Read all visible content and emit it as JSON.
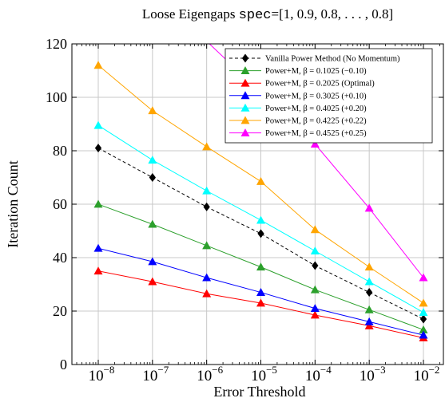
{
  "chart_data": {
    "type": "line",
    "title_prefix": "Loose Eigengaps ",
    "title_code": "spec",
    "title_suffix": "=[1, 0.9, 0.8, . . . , 0.8]",
    "xlabel": "Error Threshold",
    "ylabel": "Iteration Count",
    "x_scale": "log",
    "x": [
      1e-08,
      1e-07,
      1e-06,
      1e-05,
      0.0001,
      0.001,
      0.01
    ],
    "x_tick_labels": [
      {
        "base": "10",
        "exp": "−8"
      },
      {
        "base": "10",
        "exp": "−7"
      },
      {
        "base": "10",
        "exp": "−6"
      },
      {
        "base": "10",
        "exp": "−5"
      },
      {
        "base": "10",
        "exp": "−4"
      },
      {
        "base": "10",
        "exp": "−3"
      },
      {
        "base": "10",
        "exp": "−2"
      }
    ],
    "ylim": [
      0,
      120
    ],
    "y_ticks": [
      0,
      20,
      40,
      60,
      80,
      100,
      120
    ],
    "grid": true,
    "legend_position": "top-right",
    "series": [
      {
        "name": "Vanilla Power Method (No Momentum)",
        "color": "#000000",
        "marker": "diamond",
        "dashed": true,
        "values": [
          81,
          70,
          59,
          49,
          37,
          27,
          17
        ]
      },
      {
        "name": "Power+M, β = 0.1025 (−0.10)",
        "color": "#2ca02c",
        "marker": "triangle",
        "values": [
          60,
          52.5,
          44.5,
          36.5,
          28,
          20.5,
          13
        ]
      },
      {
        "name": "Power+M, β = 0.2025 (Optimal)",
        "color": "#ff0000",
        "marker": "triangle",
        "values": [
          35,
          31,
          26.5,
          23,
          18.5,
          14.5,
          10
        ]
      },
      {
        "name": "Power+M, β = 0.3025 (+0.10)",
        "color": "#0000ff",
        "marker": "triangle",
        "values": [
          43.5,
          38.5,
          32.5,
          27,
          21,
          16,
          11
        ]
      },
      {
        "name": "Power+M, β = 0.4025 (+0.20)",
        "color": "#00ffff",
        "marker": "triangle",
        "values": [
          89.5,
          76.5,
          65,
          54,
          42.5,
          31,
          19.5
        ]
      },
      {
        "name": "Power+M, β = 0.4225 (+0.22)",
        "color": "#ffa500",
        "marker": "triangle",
        "values": [
          112,
          95,
          81.5,
          68.5,
          50.5,
          36.5,
          23
        ]
      },
      {
        "name": "Power+M, β = 0.4525 (+0.25)",
        "color": "#ff00ff",
        "marker": "triangle",
        "values": [
          null,
          null,
          null,
          null,
          82.5,
          58.5,
          32.5
        ],
        "entry_from": [
          6.2e-07,
          125
        ]
      }
    ]
  }
}
